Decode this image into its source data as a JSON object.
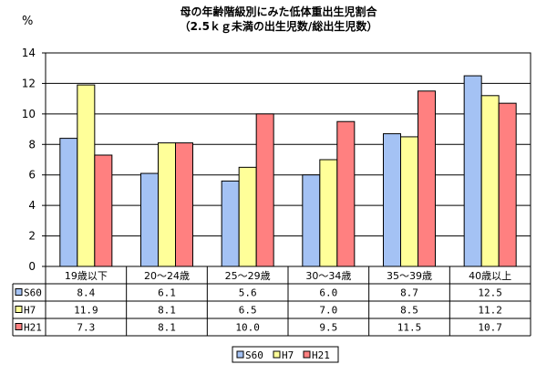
{
  "chart_data": {
    "type": "bar",
    "title": "母の年齢階級別にみた低体重出生児割合",
    "subtitle": "（2.5ｋｇ未満の出生児数/総出生児数）",
    "ylabel": "%",
    "ylim": [
      0,
      14
    ],
    "yticks": [
      "0",
      "2",
      "4",
      "6",
      "8",
      "10",
      "12",
      "14"
    ],
    "categories": [
      "19歳以下",
      "20～24歳",
      "25～29歳",
      "30～34歳",
      "35～39歳",
      "40歳以上"
    ],
    "series": [
      {
        "name": "S60",
        "values": [
          8.4,
          6.1,
          5.6,
          6.0,
          8.7,
          12.5
        ],
        "labels": [
          "8.4",
          "6.1",
          "5.6",
          "6.0",
          "8.7",
          "12.5"
        ],
        "color": "#a4c2f4"
      },
      {
        "name": "H7",
        "values": [
          11.9,
          8.1,
          6.5,
          7.0,
          8.5,
          11.2
        ],
        "labels": [
          "11.9",
          "8.1",
          "6.5",
          "7.0",
          "8.5",
          "11.2"
        ],
        "color": "#ffff99"
      },
      {
        "name": "H21",
        "values": [
          7.3,
          8.1,
          10.0,
          9.5,
          11.5,
          10.7
        ],
        "labels": [
          "7.3",
          "8.1",
          "10.0",
          "9.5",
          "11.5",
          "10.7"
        ],
        "color": "#ff8080"
      }
    ],
    "grid": true,
    "gridlines": "horizontal",
    "legend": "bottom-center",
    "data_table": true
  }
}
